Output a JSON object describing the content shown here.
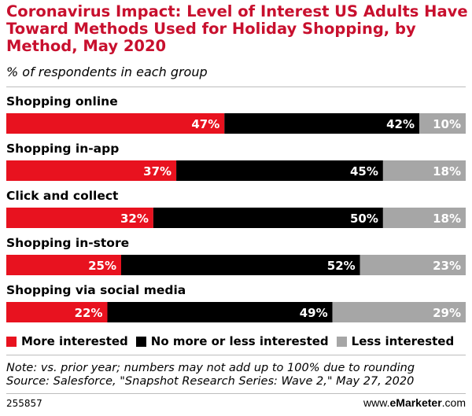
{
  "title": "Coronavirus Impact: Level of Interest US Adults Have Toward Methods Used for Holiday Shopping, by Method, May 2020",
  "subtitle": "% of respondents in each group",
  "note_line1": "Note: vs. prior year; numbers may not add up to 100% due to rounding",
  "note_line2": "Source: Salesforce, \"Snapshot Research Series: Wave 2,\" May 27, 2020",
  "footer_id": "255857",
  "footer_brand_prefix": "www.",
  "footer_brand_bold": "eMarketer",
  "footer_brand_suffix": ".com",
  "colors": {
    "title": "#c8102e",
    "more_interested": "#e8121f",
    "no_more_or_less": "#000000",
    "less_interested": "#a6a6a6"
  },
  "chart_data": {
    "type": "bar",
    "orientation": "horizontal-stacked-100",
    "categories": [
      "Shopping online",
      "Shopping in-app",
      "Click and collect",
      "Shopping in-store",
      "Shopping via social media"
    ],
    "series": [
      {
        "name": "More interested",
        "values": [
          47,
          37,
          32,
          25,
          22
        ]
      },
      {
        "name": "No more or less interested",
        "values": [
          42,
          45,
          50,
          52,
          49
        ]
      },
      {
        "name": "Less interested",
        "values": [
          10,
          18,
          18,
          23,
          29
        ]
      }
    ],
    "unit": "%",
    "legend_position": "bottom"
  }
}
